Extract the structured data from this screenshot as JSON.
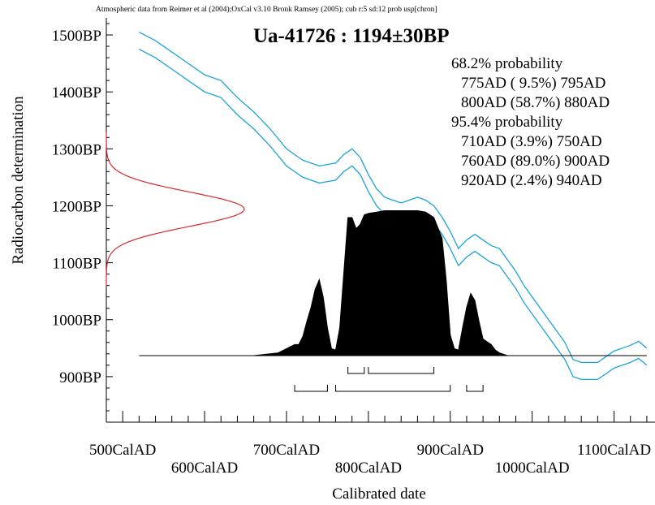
{
  "header": "Atmospheric data from Reimer et al (2004);OxCal v3.10 Bronk Ramsey (2005); cub r:5 sd:12 prob usp[chron]",
  "chart_data": {
    "type": "area",
    "title": "Ua-41726 : 1194±30BP",
    "xlabel": "Calibrated date",
    "ylabel": "Radiocarbon determination",
    "xlim": [
      480,
      1150
    ],
    "ylim": [
      820,
      1530
    ],
    "x_ticks": [
      "500CalAD",
      "600CalAD",
      "700CalAD",
      "800CalAD",
      "900CalAD",
      "1000CalAD",
      "1100CalAD"
    ],
    "x_tick_values": [
      500,
      600,
      700,
      800,
      900,
      1000,
      1100
    ],
    "y_ticks": [
      "900BP",
      "1000BP",
      "1100BP",
      "1200BP",
      "1300BP",
      "1400BP",
      "1500BP"
    ],
    "y_tick_values": [
      900,
      1000,
      1100,
      1200,
      1300,
      1400,
      1500
    ],
    "measurement": {
      "mean": 1194,
      "sigma": 30,
      "color": "#d42a2a"
    },
    "calibration_curve": {
      "color": "#1aa3d8",
      "x": [
        520,
        540,
        560,
        580,
        600,
        620,
        640,
        660,
        680,
        700,
        720,
        740,
        760,
        770,
        780,
        790,
        800,
        810,
        820,
        830,
        840,
        850,
        860,
        870,
        880,
        890,
        900,
        910,
        920,
        930,
        940,
        950,
        960,
        970,
        980,
        990,
        1000,
        1010,
        1020,
        1030,
        1040,
        1050,
        1060,
        1070,
        1080,
        1090,
        1100,
        1110,
        1120,
        1130,
        1140
      ],
      "upper": [
        1505,
        1490,
        1470,
        1450,
        1430,
        1420,
        1390,
        1365,
        1335,
        1300,
        1280,
        1270,
        1275,
        1290,
        1300,
        1285,
        1255,
        1230,
        1215,
        1210,
        1205,
        1210,
        1215,
        1210,
        1200,
        1180,
        1155,
        1125,
        1140,
        1150,
        1140,
        1130,
        1125,
        1105,
        1085,
        1060,
        1040,
        1020,
        1000,
        980,
        960,
        930,
        925,
        925,
        925,
        935,
        945,
        950,
        955,
        962,
        950
      ],
      "lower": [
        1475,
        1460,
        1440,
        1420,
        1400,
        1390,
        1360,
        1335,
        1305,
        1270,
        1250,
        1240,
        1245,
        1260,
        1270,
        1255,
        1225,
        1200,
        1185,
        1180,
        1175,
        1180,
        1185,
        1180,
        1170,
        1150,
        1125,
        1095,
        1110,
        1120,
        1110,
        1100,
        1095,
        1075,
        1055,
        1030,
        1010,
        990,
        970,
        950,
        930,
        900,
        895,
        895,
        895,
        905,
        915,
        920,
        925,
        932,
        920
      ]
    },
    "calibrated_distribution": {
      "color": "#000000",
      "x": [
        520,
        660,
        690,
        700,
        710,
        715,
        720,
        725,
        730,
        735,
        740,
        745,
        750,
        755,
        760,
        765,
        770,
        775,
        780,
        785,
        790,
        795,
        800,
        810,
        820,
        830,
        840,
        850,
        860,
        870,
        880,
        890,
        895,
        900,
        905,
        910,
        915,
        920,
        925,
        930,
        935,
        940,
        945,
        950,
        955,
        960,
        965,
        970,
        1140
      ],
      "density": [
        0,
        0,
        0.02,
        0.05,
        0.08,
        0.08,
        0.14,
        0.25,
        0.35,
        0.48,
        0.55,
        0.42,
        0.2,
        0.05,
        0.04,
        0.2,
        0.6,
        1.0,
        1.0,
        0.92,
        0.95,
        1.02,
        1.03,
        1.04,
        1.05,
        1.05,
        1.05,
        1.05,
        1.05,
        1.04,
        1.0,
        0.85,
        0.55,
        0.15,
        0.05,
        0.04,
        0.2,
        0.35,
        0.45,
        0.4,
        0.25,
        0.12,
        0.1,
        0.08,
        0.04,
        0.02,
        0.01,
        0,
        0
      ]
    },
    "probability_ranges": {
      "one_sigma": [
        [
          775,
          795
        ],
        [
          800,
          880
        ]
      ],
      "two_sigma": [
        [
          710,
          750
        ],
        [
          760,
          900
        ],
        [
          920,
          940
        ]
      ]
    },
    "annotations": [
      "68.2% probability",
      "775AD ( 9.5%) 795AD",
      "800AD (58.7%) 880AD",
      "95.4% probability",
      "710AD (3.9%) 750AD",
      "760AD (89.0%) 900AD",
      "920AD (2.4%) 940AD"
    ]
  }
}
